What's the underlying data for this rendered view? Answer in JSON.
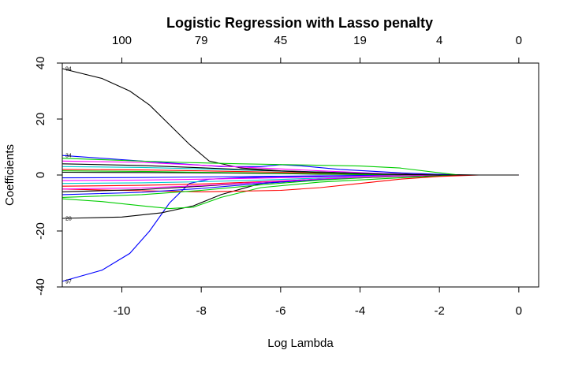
{
  "chart_data": {
    "type": "line",
    "title": "Logistic Regression with Lasso penalty",
    "xlabel": "Log Lambda",
    "ylabel": "Coefficients",
    "xlim": [
      -11.5,
      0.5
    ],
    "ylim": [
      -40,
      40
    ],
    "x_ticks": [
      -10,
      -8,
      -6,
      -4,
      -2,
      0
    ],
    "y_ticks": [
      -40,
      -20,
      0,
      20,
      40
    ],
    "top_axis": {
      "positions": [
        -10,
        -8,
        -6,
        -4,
        -2,
        0
      ],
      "labels": [
        "100",
        "79",
        "45",
        "19",
        "4",
        "0"
      ]
    },
    "grid": false,
    "legend": "none",
    "left_labels": [
      "94",
      "34",
      "28",
      "97"
    ],
    "series": [
      {
        "label": "94",
        "color": "#000000",
        "x": [
          -11.5,
          -10.5,
          -9.8,
          -9.3,
          -8.8,
          -8.3,
          -7.8,
          -7,
          -6,
          -4,
          -2,
          -1,
          0
        ],
        "y": [
          38,
          34.5,
          30,
          25,
          18,
          11,
          5,
          2.5,
          1.5,
          0.7,
          0.2,
          0,
          0
        ]
      },
      {
        "label": "97",
        "color": "#0000ff",
        "x": [
          -11.5,
          -10.5,
          -9.8,
          -9.3,
          -8.8,
          -8.3,
          -7.8,
          -7,
          -6,
          -4,
          -2,
          -1,
          0
        ],
        "y": [
          -38,
          -34,
          -28,
          -20,
          -10,
          -3,
          -1.5,
          -1,
          -0.6,
          -0.2,
          0,
          0,
          0
        ]
      },
      {
        "label": "28",
        "color": "#000000",
        "x": [
          -11.5,
          -10,
          -9,
          -8.2,
          -7.5,
          -6.5,
          -5,
          -3,
          -1.5,
          0
        ],
        "y": [
          -15.5,
          -15,
          -13.5,
          -11,
          -7,
          -3,
          -1.5,
          -0.5,
          0,
          0
        ]
      },
      {
        "label": "34",
        "color": "#0000ff",
        "x": [
          -11.5,
          -10,
          -8.5,
          -7.5,
          -6.5,
          -6,
          -5.5,
          -4.5,
          -3,
          -1.5,
          0
        ],
        "y": [
          7,
          5.5,
          4,
          3,
          3,
          3.7,
          3.3,
          2,
          0.8,
          0,
          0
        ]
      },
      {
        "label": "",
        "color": "#00cd00",
        "x": [
          -11.5,
          -10,
          -8.5,
          -7,
          -5.5,
          -4,
          -3,
          -2,
          -1.5,
          0
        ],
        "y": [
          6,
          5.2,
          4.5,
          4,
          3.6,
          3.2,
          2.5,
          0.8,
          0,
          0
        ]
      },
      {
        "label": "",
        "color": "#00cd00",
        "x": [
          -11.5,
          -10.5,
          -9.5,
          -8.8,
          -8.2,
          -7.5,
          -6.5,
          -5,
          -3,
          -1.5,
          0
        ],
        "y": [
          -8.5,
          -9.5,
          -11,
          -12,
          -11.5,
          -8,
          -4.5,
          -2.5,
          -1,
          0,
          0
        ]
      },
      {
        "label": "",
        "color": "#ff0000",
        "x": [
          -11.5,
          -10,
          -8,
          -6,
          -5,
          -4,
          -3,
          -2,
          -1,
          0
        ],
        "y": [
          -5,
          -5.5,
          -6,
          -5.5,
          -4.5,
          -3,
          -1.5,
          -0.5,
          0,
          0
        ]
      },
      {
        "label": "",
        "color": "#ff00ff",
        "x": [
          -11.5,
          -9.5,
          -8,
          -6.5,
          -5,
          -3.5,
          -2,
          0
        ],
        "y": [
          5,
          4.5,
          3.5,
          2.5,
          1.5,
          0.6,
          0,
          0
        ]
      },
      {
        "label": "",
        "color": "#00cdcd",
        "x": [
          -11.5,
          -9.5,
          -8,
          -6.5,
          -5,
          -3.5,
          -2,
          0
        ],
        "y": [
          3,
          2.7,
          2.2,
          1.6,
          1,
          0.4,
          0,
          0
        ]
      },
      {
        "label": "",
        "color": "#ff0000",
        "x": [
          -11.5,
          -9.5,
          -8,
          -6.5,
          -5,
          -3.5,
          -2,
          0
        ],
        "y": [
          2,
          1.8,
          1.5,
          1.1,
          0.7,
          0.3,
          0,
          0
        ]
      },
      {
        "label": "",
        "color": "#000000",
        "x": [
          -11.5,
          -9.5,
          -8,
          -6.5,
          -5,
          -3.5,
          -2,
          0
        ],
        "y": [
          1,
          0.9,
          0.8,
          0.6,
          0.3,
          0.1,
          0,
          0
        ]
      },
      {
        "label": "",
        "color": "#0000ff",
        "x": [
          -11.5,
          -9.5,
          -8,
          -6.5,
          -5,
          -3.5,
          -2,
          0
        ],
        "y": [
          -1,
          -0.9,
          -0.7,
          -0.5,
          -0.3,
          -0.1,
          0,
          0
        ]
      },
      {
        "label": "",
        "color": "#ff00ff",
        "x": [
          -11.5,
          -9.5,
          -8,
          -6.5,
          -5,
          -3.5,
          -2,
          0
        ],
        "y": [
          -2,
          -1.8,
          -1.5,
          -1.1,
          -0.7,
          -0.3,
          0,
          0
        ]
      },
      {
        "label": "",
        "color": "#00cdcd",
        "x": [
          -11.5,
          -9.5,
          -8,
          -6.5,
          -5,
          -3.5,
          -2,
          0
        ],
        "y": [
          -3,
          -2.8,
          -2.4,
          -1.8,
          -1.1,
          -0.5,
          0,
          0
        ]
      },
      {
        "label": "",
        "color": "#ff0000",
        "x": [
          -11.5,
          -9.5,
          -8,
          -6.5,
          -5,
          -3.5,
          -2,
          0
        ],
        "y": [
          -4,
          -3.7,
          -3.2,
          -2.4,
          -1.5,
          -0.6,
          0,
          0
        ]
      },
      {
        "label": "",
        "color": "#000000",
        "x": [
          -11.5,
          -9.5,
          -8,
          -6.5,
          -5,
          -3.5,
          -2,
          0
        ],
        "y": [
          -6,
          -5.2,
          -4,
          -2.6,
          -1.5,
          -0.6,
          0,
          0
        ]
      },
      {
        "label": "",
        "color": "#0000ff",
        "x": [
          -11.5,
          -9.5,
          -8,
          -6.5,
          -5,
          -3.5,
          -2,
          0
        ],
        "y": [
          -7,
          -6.2,
          -4.8,
          -3,
          -1.6,
          -0.6,
          0,
          0
        ]
      },
      {
        "label": "",
        "color": "#00cd00",
        "x": [
          -11.5,
          -9.5,
          -8,
          -6.5,
          -5,
          -3.5,
          -2,
          0
        ],
        "y": [
          -8,
          -7,
          -5.5,
          -3.5,
          -1.8,
          -0.7,
          0,
          0
        ]
      },
      {
        "label": "",
        "color": "#00cd00",
        "x": [
          -11.5,
          -9.5,
          -8,
          -6.5,
          -5,
          -3.5,
          -2,
          0
        ],
        "y": [
          1.5,
          1.3,
          1,
          0.7,
          0.4,
          0.1,
          0,
          0
        ]
      },
      {
        "label": "",
        "color": "#ff00ff",
        "x": [
          -11.5,
          -9.5,
          -8,
          -6.5,
          -5,
          -3.5,
          -2,
          0
        ],
        "y": [
          -5,
          -4.6,
          -3.8,
          -2.6,
          -1.4,
          -0.5,
          0,
          0
        ]
      },
      {
        "label": "",
        "color": "#000000",
        "x": [
          -11.5,
          -9.5,
          -8,
          -6.5,
          -5,
          -3.5,
          -2,
          0
        ],
        "y": [
          4,
          3.4,
          2.6,
          1.7,
          0.9,
          0.3,
          0,
          0
        ]
      }
    ]
  }
}
